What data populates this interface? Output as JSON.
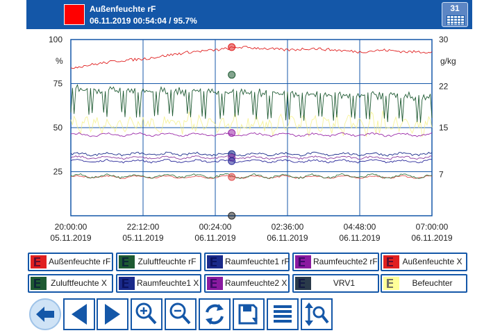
{
  "header": {
    "title": "Außenfeuchte rF",
    "subtitle": "06.11.2019 00:54:04 / 95.7%",
    "accent_color": "#ff0000",
    "calendar_day": "31"
  },
  "chart_data": {
    "type": "line",
    "x_ticks": [
      {
        "time": "20:00:00",
        "date": "05.11.2019"
      },
      {
        "time": "22:12:00",
        "date": "05.11.2019"
      },
      {
        "time": "00:24:00",
        "date": "06.11.2019"
      },
      {
        "time": "02:36:00",
        "date": "06.11.2019"
      },
      {
        "time": "04:48:00",
        "date": "06.11.2019"
      },
      {
        "time": "07:00:00",
        "date": "06.11.2019"
      }
    ],
    "x_range": [
      "05.11.2019 20:00:00",
      "06.11.2019 07:00:00"
    ],
    "cursor_time": "06.11.2019 00:54:04",
    "y_left": {
      "unit": "%",
      "min": 0,
      "max": 100,
      "ticks": [
        100,
        75,
        50,
        25
      ]
    },
    "y_right": {
      "unit": "g/kg",
      "min": 0,
      "max": 30,
      "ticks": [
        30,
        22,
        15,
        7
      ]
    },
    "grid": true,
    "series": [
      {
        "name": "Außenfeuchte rF",
        "color": "#e02020",
        "level": 93,
        "amp": 2,
        "noise": 0.8,
        "axis": "left",
        "values": [
          84,
          86,
          88,
          89,
          91,
          93,
          94,
          95.7,
          95,
          94,
          95,
          94,
          93,
          94,
          93,
          93
        ]
      },
      {
        "name": "Zuluftfeuchte rF",
        "color": "#3b7a45",
        "level": 22.5,
        "amp": 1.5,
        "noise": 0.6,
        "axis": "left"
      },
      {
        "name": "Raumfeuchte1 rF",
        "color": "#1a2a8a",
        "level": 35,
        "amp": 1,
        "noise": 0.6,
        "axis": "left"
      },
      {
        "name": "Raumfeuchte2 rF",
        "color": "#9a2aa8",
        "level": 46,
        "amp": 1.2,
        "noise": 0.5,
        "axis": "left"
      },
      {
        "name": "Außenfeuchte X",
        "color": "#e05050",
        "level": 22,
        "amp": 1,
        "noise": 0.4,
        "axis": "left"
      },
      {
        "name": "Zuluftfeuchte X",
        "color": "#1e5a32",
        "level": 70,
        "amp": 10,
        "noise": 1.5,
        "axis": "left"
      },
      {
        "name": "Raumfeuchte1 X",
        "color": "#2a2a9a",
        "level": 31,
        "amp": 1,
        "noise": 0.5,
        "axis": "left"
      },
      {
        "name": "Raumfeuchte2 X",
        "color": "#8a3aa0",
        "level": 33,
        "amp": 1,
        "noise": 0.5,
        "axis": "left"
      },
      {
        "name": "VRV1",
        "color": "#2a2a2a",
        "level": 0,
        "amp": 0,
        "noise": 0,
        "axis": "left"
      },
      {
        "name": "Befeuchter",
        "color": "#f5f080",
        "level": 52,
        "amp": 6,
        "noise": 2,
        "axis": "left"
      }
    ],
    "cursor_markers": [
      {
        "series": "Außenfeuchte rF",
        "value": 95.7
      },
      {
        "series": "Zuluftfeuchte X",
        "value": 80
      },
      {
        "series": "Raumfeuchte2 rF",
        "value": 47
      },
      {
        "series": "Raumfeuchte1 rF",
        "value": 35
      },
      {
        "series": "Raumfeuchte2 X",
        "value": 33
      },
      {
        "series": "Raumfeuchte1 X",
        "value": 31
      },
      {
        "series": "Außenfeuchte X",
        "value": 22
      },
      {
        "series": "VRV1",
        "value": 0
      }
    ]
  },
  "legend": [
    {
      "label": "Außenfeuchte rF",
      "color": "#e02020"
    },
    {
      "label": "Zuluftfeuchte rF",
      "color": "#1e5a32"
    },
    {
      "label": "Raumfeuchte1 rF",
      "color": "#1a2a8a"
    },
    {
      "label": "Raumfeuchte2 rF",
      "color": "#8a1aa0"
    },
    {
      "label": "Außenfeuchte X",
      "color": "#e02020"
    },
    {
      "label": "Zuluftfeuchte X",
      "color": "#1e5a32"
    },
    {
      "label": "Raumfeuchte1 X",
      "color": "#1a2a8a"
    },
    {
      "label": "Raumfeuchte2 X",
      "color": "#8a1aa0"
    },
    {
      "label": "VRV1",
      "color": "#2a3a4a"
    },
    {
      "label": "Befeuchter",
      "color": "#ffff99"
    }
  ],
  "toolbar": {
    "buttons": [
      "back-icon",
      "previous-icon",
      "next-icon",
      "zoom-in-icon",
      "zoom-out-icon",
      "refresh-icon",
      "save-icon",
      "menu-icon",
      "scale-zoom-icon"
    ],
    "color": "#1457a8"
  }
}
